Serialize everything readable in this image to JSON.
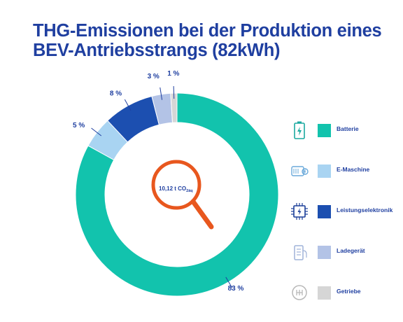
{
  "header": {
    "title_line1": "THG-Emissionen bei der Produktion eines",
    "title_line2": "BEV-Antriebsstrangs (82kWh)"
  },
  "center": {
    "value": "10,12 t CO",
    "subscript": "2äq"
  },
  "colors": {
    "title": "#1f3fa0",
    "label": "#1f3fa0",
    "magnifier": "#e8571e"
  },
  "chart_data": {
    "type": "pie",
    "style": "donut",
    "categories": [
      "Batterie",
      "E-Maschine",
      "Leistungselektronik",
      "Ladegerät",
      "Getriebe"
    ],
    "values": [
      83,
      5,
      8,
      3,
      1
    ],
    "labels": [
      "83 %",
      "5 %",
      "8 %",
      "3 %",
      "1 %"
    ],
    "colors": [
      "#12c3ad",
      "#a9d4f2",
      "#1c4fb0",
      "#b3c3e6",
      "#d6d6d6"
    ],
    "legend_position": "right"
  },
  "legend": {
    "items": [
      {
        "label": "Batterie",
        "icon": "battery-icon"
      },
      {
        "label": "E-Maschine",
        "icon": "electric-motor-icon"
      },
      {
        "label": "Leistungselektronik",
        "icon": "chip-icon"
      },
      {
        "label": "Ladegerät",
        "icon": "charger-icon"
      },
      {
        "label": "Getriebe",
        "icon": "gearbox-icon"
      }
    ]
  }
}
